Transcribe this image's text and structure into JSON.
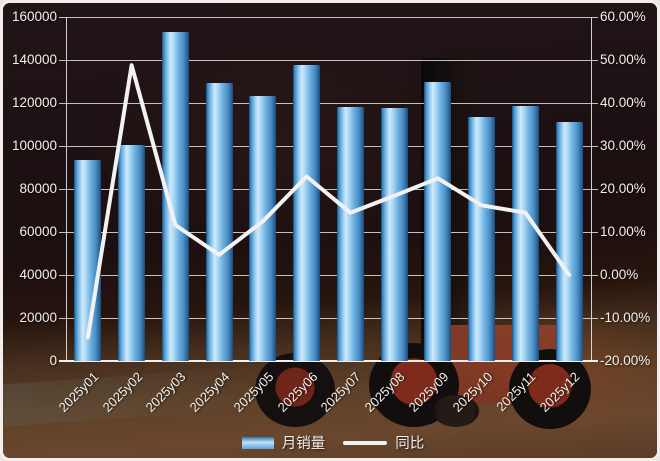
{
  "chart_data": {
    "type": "combo",
    "categories": [
      "2025y01",
      "2025y02",
      "2025y03",
      "2025y04",
      "2025y05",
      "2025y06",
      "2025y07",
      "2025y08",
      "2025y09",
      "2025y10",
      "2025y11",
      "2025y12"
    ],
    "series": [
      {
        "name": "月销量",
        "type": "bar",
        "axis": "left",
        "values": [
          93500,
          100600,
          152800,
          129300,
          123200,
          137500,
          118000,
          117600,
          129600,
          113600,
          118800,
          111000
        ]
      },
      {
        "name": "同比",
        "type": "line",
        "axis": "right",
        "values": [
          -14.5,
          48.8,
          11.6,
          4.7,
          12.5,
          22.9,
          14.5,
          18.4,
          22.5,
          16.2,
          14.5,
          0.0
        ]
      }
    ],
    "left_axis": {
      "min": 0,
      "max": 160000,
      "step": 20000,
      "ticks": [
        "160000",
        "140000",
        "120000",
        "100000",
        "80000",
        "60000",
        "40000",
        "20000",
        "0"
      ]
    },
    "right_axis": {
      "min": -20,
      "max": 60,
      "step": 10,
      "ticks": [
        "60.00%",
        "50.00%",
        "40.00%",
        "30.00%",
        "20.00%",
        "10.00%",
        "0.00%",
        "-10.00%",
        "-20.00%"
      ]
    },
    "legend": {
      "position": "bottom",
      "entries": [
        "月销量",
        "同比"
      ]
    },
    "grid": true,
    "title": ""
  },
  "colors": {
    "bar_highlight": "#cfeafc",
    "bar_main": "#6fb0e0",
    "bar_edge": "#1c4a75",
    "line": "#f2f2f2",
    "axis_text": "#f3efec",
    "gridline": "#eeecE9",
    "background_top": "#1c1113",
    "background_floor": "#5e4028"
  }
}
